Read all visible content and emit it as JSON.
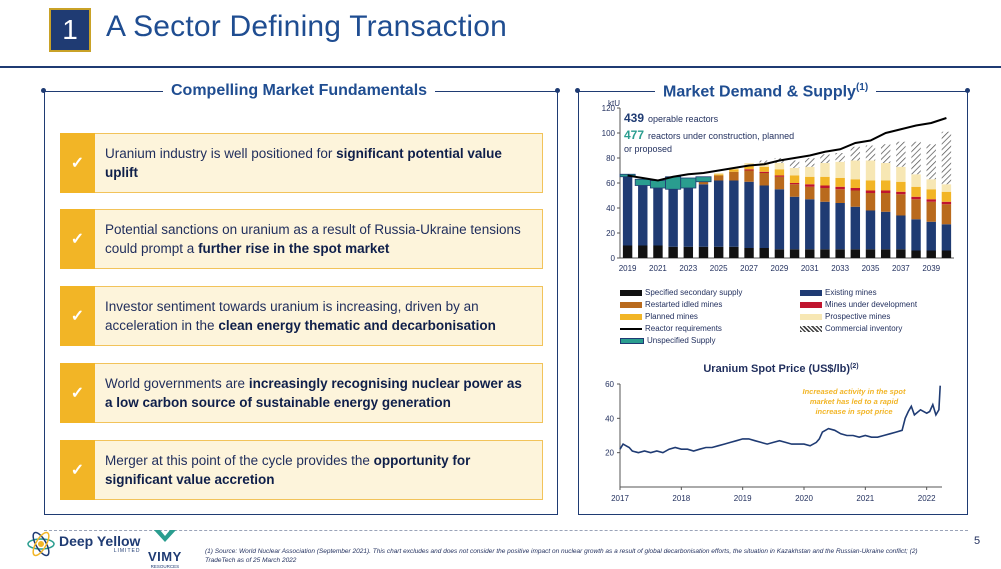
{
  "slide_number": "1",
  "title": "A Sector Defining Transaction",
  "left_panel": {
    "heading": "Compelling Market Fundamentals",
    "check_icon": "✓",
    "items": [
      {
        "pre": "Uranium industry is well positioned for ",
        "bold": "significant potential value uplift",
        "post": ""
      },
      {
        "pre": "Potential sanctions on uranium as a result of Russia-Ukraine tensions could prompt a ",
        "bold": "further rise in the spot market",
        "post": ""
      },
      {
        "pre": "Investor sentiment towards uranium is increasing, driven by an acceleration in the ",
        "bold": "clean energy thematic and decarbonisation",
        "post": ""
      },
      {
        "pre": "World governments are ",
        "bold": "increasingly recognising nuclear power as a low carbon source of sustainable energy generation",
        "post": ""
      },
      {
        "pre": "Merger at this point of the cycle provides the ",
        "bold": "opportunity for significant value accretion",
        "post": ""
      }
    ]
  },
  "right_panel": {
    "heading": "Market Demand & Supply",
    "heading_sup": "(1)"
  },
  "chart_data": [
    {
      "type": "bar",
      "stacked": true,
      "title": "Market Demand & Supply",
      "ylabel": "ktU",
      "ylim": [
        0,
        120
      ],
      "yticks": [
        0,
        20,
        40,
        60,
        80,
        100,
        120
      ],
      "categories": [
        "2019",
        "2020",
        "2021",
        "2022",
        "2023",
        "2024",
        "2025",
        "2026",
        "2027",
        "2028",
        "2029",
        "2030",
        "2031",
        "2032",
        "2033",
        "2034",
        "2035",
        "2036",
        "2037",
        "2038",
        "2039",
        "2040"
      ],
      "xtick_labels": [
        "2019",
        "2021",
        "2023",
        "2025",
        "2027",
        "2029",
        "2031",
        "2033",
        "2035",
        "2037",
        "2039"
      ],
      "annotations": [
        {
          "value": "439",
          "text": "operable reactors"
        },
        {
          "value": "477",
          "text": "reactors under construction, planned or proposed"
        }
      ],
      "series": [
        {
          "name": "Specified secondary supply",
          "color": "#111111",
          "values": [
            10,
            10,
            10,
            9,
            9,
            9,
            9,
            9,
            8,
            8,
            7,
            7,
            7,
            7,
            7,
            7,
            7,
            7,
            7,
            6,
            6,
            6
          ]
        },
        {
          "name": "Existing mines",
          "color": "#1f3b73",
          "values": [
            55,
            48,
            46,
            46,
            47,
            50,
            53,
            53,
            53,
            50,
            48,
            42,
            40,
            38,
            37,
            34,
            31,
            30,
            27,
            25,
            23,
            21
          ]
        },
        {
          "name": "Restarted idled mines",
          "color": "#b96a1d",
          "values": [
            0,
            0,
            0,
            0,
            0,
            2,
            4,
            7,
            9,
            10,
            10,
            10,
            10,
            11,
            11,
            13,
            14,
            15,
            17,
            16,
            16,
            16
          ]
        },
        {
          "name": "Mines under development",
          "color": "#c0152f",
          "values": [
            0,
            0,
            0,
            0,
            0,
            0,
            0,
            0,
            1,
            1,
            1,
            1,
            2,
            2,
            2,
            2,
            2,
            2,
            2,
            2,
            2,
            2
          ]
        },
        {
          "name": "Planned mines",
          "color": "#f2b526",
          "values": [
            0,
            0,
            0,
            0,
            0,
            0,
            1,
            2,
            3,
            4,
            5,
            6,
            6,
            7,
            7,
            7,
            8,
            8,
            8,
            8,
            8,
            8
          ]
        },
        {
          "name": "Prospective mines",
          "color": "#f7e7b4",
          "values": [
            0,
            0,
            0,
            0,
            0,
            0,
            1,
            1,
            2,
            3,
            5,
            6,
            8,
            11,
            13,
            15,
            16,
            14,
            12,
            10,
            8,
            6
          ]
        },
        {
          "name": "Commercial inventory",
          "color": "hatch",
          "values": [
            0,
            0,
            0,
            0,
            0,
            0,
            0,
            0,
            0,
            2,
            4,
            6,
            7,
            7,
            7,
            11,
            12,
            15,
            20,
            26,
            28,
            42
          ]
        },
        {
          "name": "Unspecified Supply",
          "color": "#2a9d8f",
          "values": [
            2,
            5,
            6,
            10,
            8,
            4,
            0,
            0,
            0,
            0,
            0,
            0,
            0,
            0,
            0,
            0,
            0,
            0,
            0,
            0,
            0,
            0
          ]
        }
      ],
      "line": {
        "name": "Reactor requirements",
        "color": "#000000",
        "values": [
          66,
          64,
          62,
          65,
          67,
          68,
          70,
          72,
          74,
          75,
          78,
          80,
          82,
          85,
          87,
          92,
          94,
          100,
          103,
          106,
          108,
          112
        ]
      }
    },
    {
      "type": "line",
      "title": "Uranium Spot Price (US$/lb)",
      "title_sup": "(2)",
      "ylim": [
        0,
        60
      ],
      "yticks": [
        20,
        40,
        60
      ],
      "xlim": [
        2017,
        2022.25
      ],
      "xtick_labels": [
        "2017",
        "2018",
        "2019",
        "2020",
        "2021",
        "2022"
      ],
      "annotation": "Increased activity in the spot market has led to a rapid increase in spot price",
      "series": [
        {
          "name": "Spot price",
          "color": "#1f3b73",
          "x": [
            2017.0,
            2017.05,
            2017.1,
            2017.15,
            2017.2,
            2017.3,
            2017.4,
            2017.5,
            2017.6,
            2017.7,
            2017.8,
            2017.9,
            2018.0,
            2018.1,
            2018.2,
            2018.3,
            2018.4,
            2018.5,
            2018.6,
            2018.7,
            2018.8,
            2018.9,
            2019.0,
            2019.1,
            2019.2,
            2019.3,
            2019.4,
            2019.5,
            2019.6,
            2019.7,
            2019.8,
            2019.9,
            2020.0,
            2020.1,
            2020.2,
            2020.25,
            2020.3,
            2020.4,
            2020.5,
            2020.6,
            2020.7,
            2020.8,
            2020.9,
            2021.0,
            2021.1,
            2021.2,
            2021.3,
            2021.4,
            2021.5,
            2021.6,
            2021.65,
            2021.7,
            2021.75,
            2021.8,
            2021.9,
            2022.0,
            2022.05,
            2022.1,
            2022.15,
            2022.2,
            2022.22
          ],
          "y": [
            22,
            25,
            24,
            23,
            21,
            20,
            21,
            20,
            21,
            20,
            22,
            23,
            22,
            22,
            21,
            22,
            23,
            23,
            24,
            25,
            26,
            27,
            28,
            28,
            27,
            26,
            25,
            26,
            27,
            26,
            25,
            25,
            25,
            24,
            26,
            28,
            32,
            34,
            33,
            31,
            30,
            30,
            29,
            30,
            29,
            29,
            30,
            31,
            32,
            33,
            40,
            44,
            47,
            42,
            45,
            43,
            44,
            48,
            42,
            45,
            59
          ]
        }
      ]
    }
  ],
  "legend": {
    "items": [
      {
        "label": "Specified secondary supply",
        "color": "#111111"
      },
      {
        "label": "Existing mines",
        "color": "#1f3b73"
      },
      {
        "label": "Restarted idled mines",
        "color": "#b96a1d"
      },
      {
        "label": "Mines under development",
        "color": "#c0152f"
      },
      {
        "label": "Planned mines",
        "color": "#f2b526"
      },
      {
        "label": "Prospective mines",
        "color": "#f7e7b4"
      },
      {
        "label": "Reactor requirements",
        "color": "#000000"
      },
      {
        "label": "Commercial inventory",
        "color": "hatch"
      },
      {
        "label": "Unspecified Supply",
        "color": "#2a9d8f"
      }
    ]
  },
  "logos": {
    "deep_yellow": "Deep Yellow",
    "deep_yellow_sub": "LIMITED",
    "vimy": "VIMY",
    "vimy_sub": "RESOURCES"
  },
  "footnote": "(1) Source: World Nuclear Association (September 2021). This chart excludes and does not consider the positive impact on nuclear growth as a result of global decarbonisation efforts, the situation in Kazakhstan and the Russian-Ukraine conflict; (2) TradeTech as of 25 March 2022",
  "page_number": "5",
  "colors": {
    "navy": "#1f3b73",
    "title_blue": "#1f4d91",
    "gold": "#f2b526",
    "cream": "#fdf4db"
  }
}
